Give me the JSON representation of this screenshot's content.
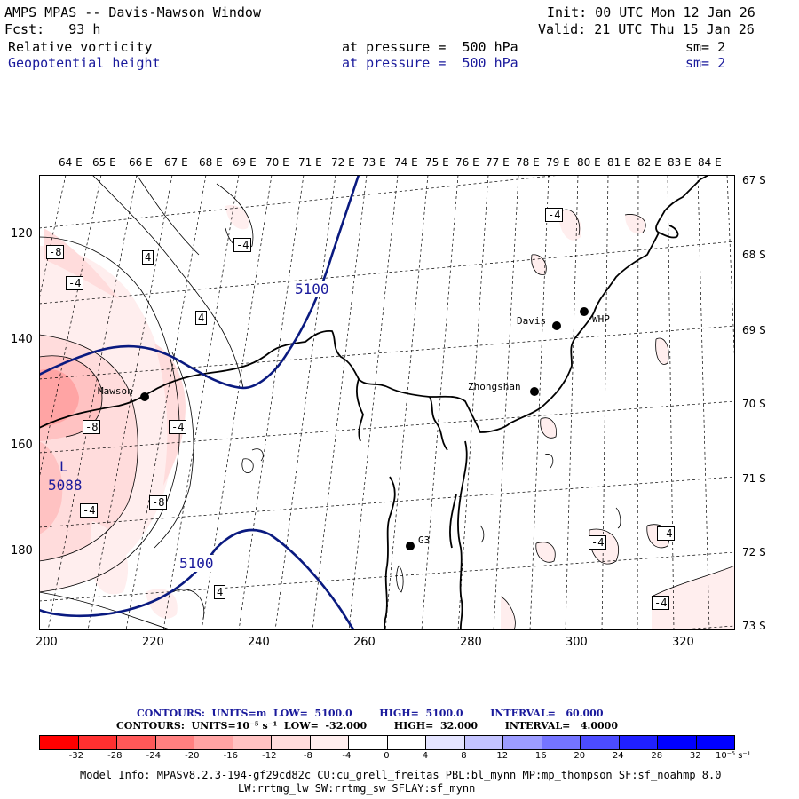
{
  "header": {
    "title": "AMPS MPAS -- Davis-Mawson Window",
    "fcst": "Fcst:   93 h",
    "init": "Init: 00 UTC Mon 12 Jan 26",
    "valid": "Valid: 21 UTC Thu 15 Jan 26",
    "field1": {
      "name": "Relative vorticity",
      "level": "at pressure =  500 hPa",
      "sm": "sm= 2"
    },
    "field2": {
      "name": "Geopotential height",
      "level": "at pressure =  500 hPa",
      "sm": "sm= 2"
    }
  },
  "axes": {
    "lon_labels": [
      "64 E",
      "65 E",
      "66 E",
      "67 E",
      "68 E",
      "69 E",
      "70 E",
      "71 E",
      "72 E",
      "73 E",
      "74 E",
      "75 E",
      "76 E",
      "77 E",
      "78 E",
      "79 E",
      "80 E",
      "81 E",
      "82 E",
      "83 E",
      "84 E"
    ],
    "lat_labels": [
      "67 S",
      "68 S",
      "69 S",
      "70 S",
      "71 S",
      "72 S",
      "73 S"
    ],
    "x_ticks": [
      "200",
      "220",
      "240",
      "260",
      "280",
      "300",
      "320"
    ],
    "y_ticks": [
      "120",
      "140",
      "160",
      "180"
    ]
  },
  "stations": [
    {
      "name": "Mawson"
    },
    {
      "name": "Davis"
    },
    {
      "name": "WHP"
    },
    {
      "name": "Zhongshan"
    },
    {
      "name": "G3"
    }
  ],
  "contour_labels": {
    "height": [
      "5100",
      "5100",
      "5088",
      "L"
    ],
    "vorticity": [
      "-8",
      "-4",
      "4",
      "4",
      "-4",
      "-8",
      "-4",
      "-8",
      "-4",
      "4",
      "-4",
      "-4",
      "-4",
      "-4"
    ]
  },
  "contours_info": {
    "line1": "CONTOURS:  UNITS=m  LOW=  5100.0        HIGH=  5100.0        INTERVAL=   60.000",
    "line2": "CONTOURS:  UNITS=10⁻⁵ s⁻¹  LOW=  -32.000        HIGH=  32.000        INTERVAL=   4.0000"
  },
  "colorbar": {
    "colors": [
      "#ff0000",
      "#ff3030",
      "#ff5858",
      "#ff8080",
      "#ffa4a4",
      "#ffc2c2",
      "#ffdcdc",
      "#ffeeee",
      "#ffffff",
      "#ffffff",
      "#e4e4ff",
      "#c4c4ff",
      "#9c9cff",
      "#7474ff",
      "#4c4cff",
      "#2020ff",
      "#0000ff",
      "#0000ff"
    ],
    "labels": [
      "-32",
      "-28",
      "-24",
      "-20",
      "-16",
      "-12",
      "-8",
      "-4",
      "0",
      "4",
      "8",
      "12",
      "16",
      "20",
      "24",
      "28",
      "32"
    ],
    "unit": "10⁻⁵ s⁻¹"
  },
  "model_info": {
    "line1": "Model Info: MPASv8.2.3-194-gf29cd82c CU:cu_grell_freitas PBL:bl_mynn MP:mp_thompson SF:sf_noahmp 8.0",
    "line2": "LW:rrtmg_lw SW:rrtmg_sw SFLAY:sf_mynn"
  }
}
